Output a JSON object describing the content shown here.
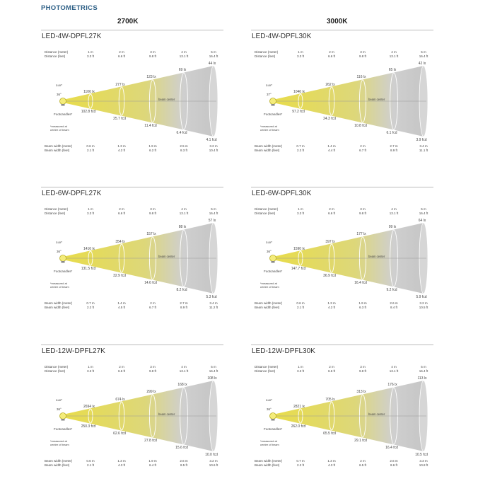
{
  "header": {
    "section_title": "PHOTOMETRICS",
    "col_2700": "2700K",
    "col_3000": "3000K"
  },
  "labels": {
    "distance_m": "Distance (meter)",
    "distance_ft": "Distance (feet)",
    "lux": "Lux*",
    "footcandles": "Footcandles*",
    "note1": "*measured at",
    "note2": "center of beam",
    "beam_width_m": "Beam width (meter)",
    "beam_width_ft": "Beam width (feet)",
    "beam_center": "beam center"
  },
  "colors": {
    "yellow": "#e8dc4a",
    "grey": "#cfcfcf",
    "title_blue": "#2d5f86"
  },
  "panels": [
    {
      "title": "LED-4W-DPFL27K",
      "angle": "36°",
      "dist_m": [
        "1 m",
        "2 m",
        "3 m",
        "4 m",
        "5 m"
      ],
      "dist_ft": [
        "3.3 ft",
        "6.6 ft",
        "9.8 ft",
        "13.1 ft",
        "16.4 ft"
      ],
      "lux": [
        "1106 lx",
        "277 lx",
        "123 lx",
        "69 lx",
        "44 lx"
      ],
      "fc": [
        "102.8 fcd",
        "25.7 fcd",
        "11.4 fcd",
        "6.4 fcd",
        "4.1 fcd"
      ],
      "bw_m": [
        "0.6 m",
        "1.3 m",
        "1.9 m",
        "2.5 m",
        "3.2 m"
      ],
      "bw_ft": [
        "2.1 ft",
        "4.2 ft",
        "6.2 ft",
        "8.3 ft",
        "10.4 ft"
      ]
    },
    {
      "title": "LED-4W-DPFL30K",
      "angle": "37°",
      "dist_m": [
        "1 m",
        "2 m",
        "3 m",
        "4 m",
        "5 m"
      ],
      "dist_ft": [
        "3.3 ft",
        "6.6 ft",
        "9.8 ft",
        "13.1 ft",
        "16.4 ft"
      ],
      "lux": [
        "1046 lx",
        "262 lx",
        "116 lx",
        "65 lx",
        "42 lx"
      ],
      "fc": [
        "97.2 fcd",
        "24.3 fcd",
        "10.8 fcd",
        "6.1 fcd",
        "3.9 fcd"
      ],
      "bw_m": [
        "0.7 m",
        "1.4 m",
        "2 m",
        "2.7 m",
        "3.4 m"
      ],
      "bw_ft": [
        "2.2 ft",
        "4.4 ft",
        "6.7 ft",
        "8.9 ft",
        "11.1 ft"
      ]
    },
    {
      "title": "LED-6W-DPFL27K",
      "angle": "36°",
      "dist_m": [
        "1 m",
        "2 m",
        "3 m",
        "4 m",
        "5 m"
      ],
      "dist_ft": [
        "3.3 ft",
        "6.6 ft",
        "9.8 ft",
        "13.1 ft",
        "16.4 ft"
      ],
      "lux": [
        "1416 lx",
        "354 lx",
        "157 lx",
        "88 lx",
        "57 lx"
      ],
      "fc": [
        "131.5 fcd",
        "32.9 fcd",
        "14.6 fcd",
        "8.2 fcd",
        "5.3 fcd"
      ],
      "bw_m": [
        "0.7 m",
        "1.4 m",
        "2 m",
        "2.7 m",
        "3.4 m"
      ],
      "bw_ft": [
        "2.2 ft",
        "4.5 ft",
        "6.7 ft",
        "8.9 ft",
        "11.2 ft"
      ]
    },
    {
      "title": "LED-6W-DPFL30K",
      "angle": "36°",
      "dist_m": [
        "1 m",
        "2 m",
        "3 m",
        "4 m",
        "5 m"
      ],
      "dist_ft": [
        "3.3 ft",
        "6.6 ft",
        "9.8 ft",
        "13.1 ft",
        "16.4 ft"
      ],
      "lux": [
        "1590 lx",
        "397 lx",
        "177 lx",
        "99 lx",
        "64 lx"
      ],
      "fc": [
        "147.7 fcd",
        "36.9 fcd",
        "16.4 fcd",
        "9.2 fcd",
        "5.9 fcd"
      ],
      "bw_m": [
        "0.6 m",
        "1.3 m",
        "1.9 m",
        "2.6 m",
        "3.2 m"
      ],
      "bw_ft": [
        "2.1 ft",
        "4.2 ft",
        "6.3 ft",
        "8.4 ft",
        "10.5 ft"
      ]
    },
    {
      "title": "LED-12W-DPFL27K",
      "angle": "36°",
      "dist_m": [
        "1 m",
        "2 m",
        "3 m",
        "4 m",
        "5 m"
      ],
      "dist_ft": [
        "3.3 ft",
        "6.6 ft",
        "9.8 ft",
        "13.1 ft",
        "16.4 ft"
      ],
      "lux": [
        "2694 lx",
        "674 lx",
        "299 lx",
        "168 lx",
        "108 lx"
      ],
      "fc": [
        "250.3 fcd",
        "62.6 fcd",
        "27.8 fcd",
        "15.6 fcd",
        "10.0 fcd"
      ],
      "bw_m": [
        "0.6 m",
        "1.3 m",
        "1.9 m",
        "2.6 m",
        "3.2 m"
      ],
      "bw_ft": [
        "2.1 ft",
        "4.3 ft",
        "6.4 ft",
        "8.5 ft",
        "10.6 ft"
      ]
    },
    {
      "title": "LED-12W-DPFL30K",
      "angle": "36°",
      "dist_m": [
        "1 m",
        "2 m",
        "3 m",
        "4 m",
        "5 m"
      ],
      "dist_ft": [
        "3.3 ft",
        "6.6 ft",
        "9.8 ft",
        "13.1 ft",
        "16.4 ft"
      ],
      "lux": [
        "2821 lx",
        "705 lx",
        "313 lx",
        "176 lx",
        "113 lx"
      ],
      "fc": [
        "262.0 fcd",
        "65.5 fcd",
        "29.1 fcd",
        "16.4 fcd",
        "10.5 fcd"
      ],
      "bw_m": [
        "0.7 m",
        "1.3 m",
        "2 m",
        "2.6 m",
        "3.3 m"
      ],
      "bw_ft": [
        "2.2 ft",
        "4.3 ft",
        "6.5 ft",
        "8.6 ft",
        "10.8 ft"
      ]
    }
  ]
}
